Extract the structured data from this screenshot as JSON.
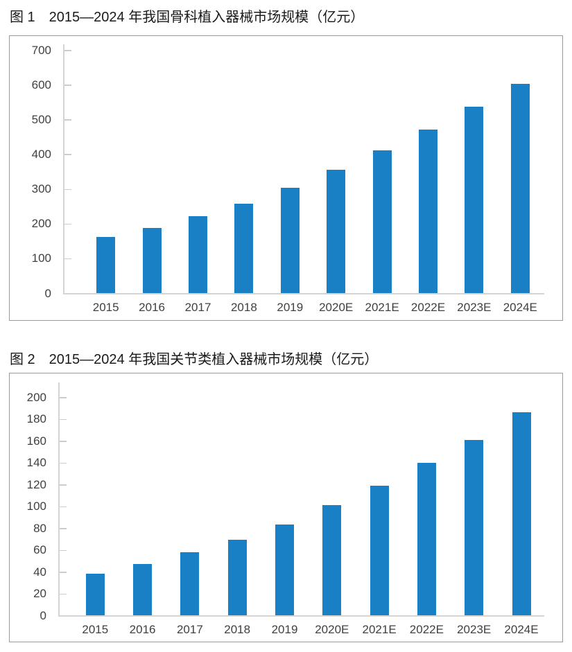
{
  "chart_data": [
    {
      "id": "figure1",
      "type": "bar",
      "title": "图 1　2015—2024 年我国骨科植入器械市场规模（亿元）",
      "categories": [
        "2015",
        "2016",
        "2017",
        "2018",
        "2019",
        "2020E",
        "2021E",
        "2022E",
        "2023E",
        "2024E"
      ],
      "values": [
        161,
        188,
        222,
        257,
        304,
        356,
        410,
        471,
        537,
        602
      ],
      "xlabel": "",
      "ylabel": "",
      "ylim": [
        0,
        700
      ],
      "ytick_step": 100,
      "grid": false,
      "legend": null
    },
    {
      "id": "figure2",
      "type": "bar",
      "title": "图 2　2015—2024 年我国关节类植入器械市场规模（亿元）",
      "categories": [
        "2015",
        "2016",
        "2017",
        "2018",
        "2019",
        "2020E",
        "2021E",
        "2022E",
        "2023E",
        "2024E"
      ],
      "values": [
        38,
        47,
        58,
        69,
        83,
        101,
        119,
        140,
        161,
        186
      ],
      "xlabel": "",
      "ylabel": "",
      "ylim": [
        0,
        200
      ],
      "ytick_step": 20,
      "grid": false,
      "legend": null
    }
  ],
  "colors": {
    "bar": "#1a80c6",
    "axis": "#d4d4d4",
    "tick": "#cccccc",
    "box_border": "#9a9a9a",
    "label": "#404040",
    "title": "#1a1a1a"
  }
}
